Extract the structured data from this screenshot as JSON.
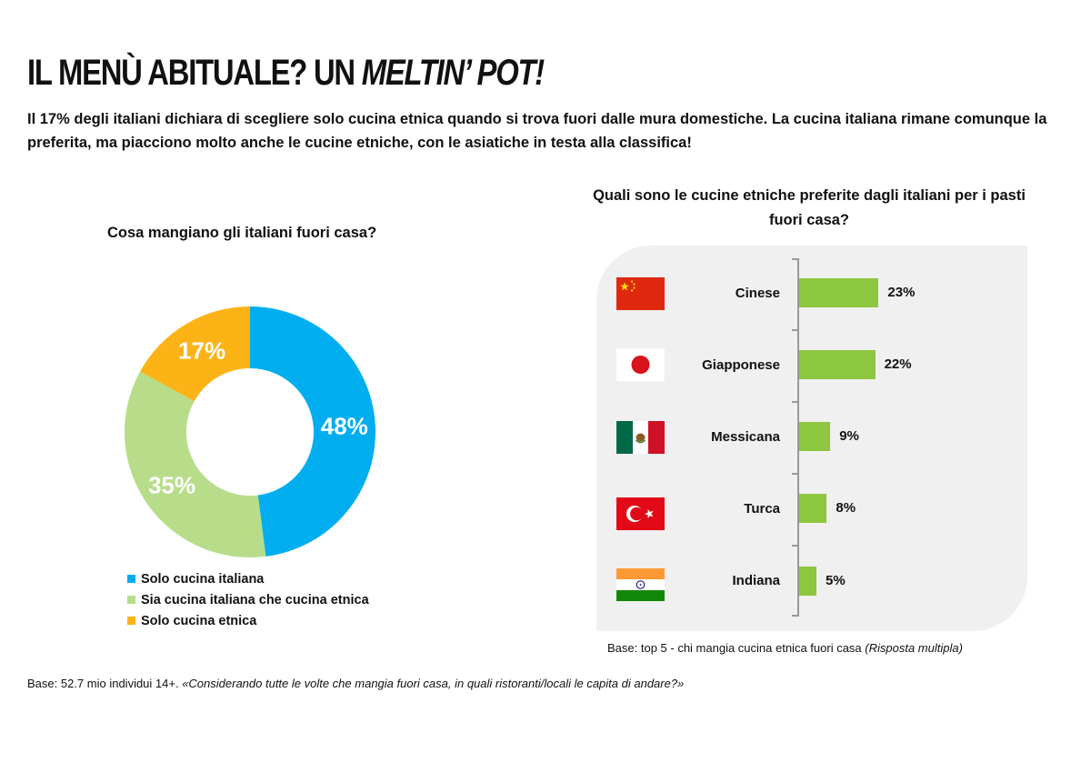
{
  "header": {
    "title_main": "IL MENÙ ABITUALE? UN ",
    "title_emph": "MELTIN’ POT!",
    "intro": "Il 17% degli italiani dichiara di scegliere solo cucina etnica quando si trova fuori dalle mura domestiche. La cucina italiana rimane comunque la preferita, ma piacciono molto anche le cucine etniche, con le asiatiche in testa alla classifica!"
  },
  "chart_data": [
    {
      "type": "pie",
      "variant": "donut",
      "title": "Cosa mangiano gli italiani fuori casa?",
      "categories": [
        "Solo cucina italiana",
        "Sia cucina italiana che cucina etnica",
        "Solo cucina etnica"
      ],
      "values": [
        48,
        35,
        17
      ],
      "value_labels": [
        "48%",
        "35%",
        "17%"
      ],
      "colors": [
        "#00aeef",
        "#b7dd8a",
        "#fbb316"
      ],
      "legend_position": "bottom-left"
    },
    {
      "type": "bar",
      "orientation": "horizontal",
      "title": "Quali sono le cucine etniche preferite dagli italiani per i pasti fuori casa?",
      "categories": [
        "Cinese",
        "Giapponese",
        "Messicana",
        "Turca",
        "Indiana"
      ],
      "values": [
        23,
        22,
        9,
        8,
        5
      ],
      "value_labels": [
        "23%",
        "22%",
        "9%",
        "8%",
        "5%"
      ],
      "flag_icons": [
        "china-flag-icon",
        "japan-flag-icon",
        "mexico-flag-icon",
        "turkey-flag-icon",
        "india-flag-icon"
      ],
      "bar_color": "#8dc63f",
      "note_main": "Base: top 5 - chi mangia cucina etnica fuori casa ",
      "note_emph": "(Risposta multipla)"
    }
  ],
  "footer": {
    "base": "Base: 52.7 mio individui 14+.  ",
    "question": "«Considerando tutte le volte che mangia fuori casa, in quali ristoranti/locali le capita di andare?»"
  }
}
